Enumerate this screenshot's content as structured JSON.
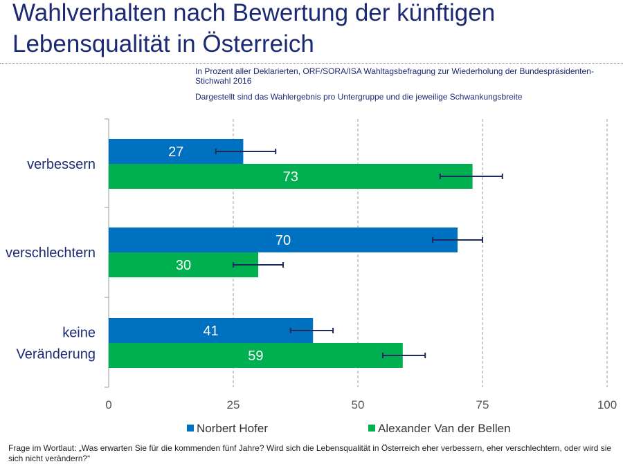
{
  "header": {
    "title_line1": "Wahlverhalten nach Bewertung der künftigen",
    "title_line2": "Lebensqualität in Österreich",
    "subtitle1": "In Prozent aller Deklarierten, ORF/SORA/ISA Wahltagsbefragung zur Wiederholung der Bundespräsidenten-Stichwahl 2016",
    "subtitle2": "Dargestellt sind das Wahlergebnis pro Untergruppe und die jeweilige Schwankungsbreite"
  },
  "colors": {
    "hofer": "#0070c0",
    "vdb": "#00b050",
    "error_bar": "#1f2a5c",
    "title": "#1b2a73"
  },
  "chart_data": {
    "type": "bar",
    "orientation": "horizontal",
    "categories": [
      [
        "verbessern"
      ],
      [
        "verschlechtern"
      ],
      [
        "keine",
        "Veränderung"
      ]
    ],
    "series": [
      {
        "name": "Norbert Hofer",
        "color": "#0070c0",
        "values": [
          27,
          70,
          41
        ],
        "error_low": [
          21.5,
          65,
          36.5
        ],
        "error_high": [
          33.5,
          75,
          45
        ]
      },
      {
        "name": "Alexander Van der Bellen",
        "color": "#00b050",
        "values": [
          73,
          30,
          59
        ],
        "error_low": [
          66.5,
          25,
          55
        ],
        "error_high": [
          79,
          35,
          63.5
        ]
      }
    ],
    "xlim": [
      0,
      100
    ],
    "xticks": [
      0,
      25,
      50,
      75,
      100
    ],
    "grid": "vertical dashed",
    "legend": "bottom",
    "data_labels": true
  },
  "legend": {
    "items": [
      {
        "label": "Norbert Hofer",
        "color": "#0070c0"
      },
      {
        "label": "Alexander Van der Bellen",
        "color": "#00b050"
      }
    ]
  },
  "footnote": "Frage im Wortlaut: „Was erwarten Sie für die kommenden fünf Jahre? Wird sich die Lebensqualität in Österreich eher verbessern, eher verschlechtern, oder wird sie sich nicht verändern?“"
}
